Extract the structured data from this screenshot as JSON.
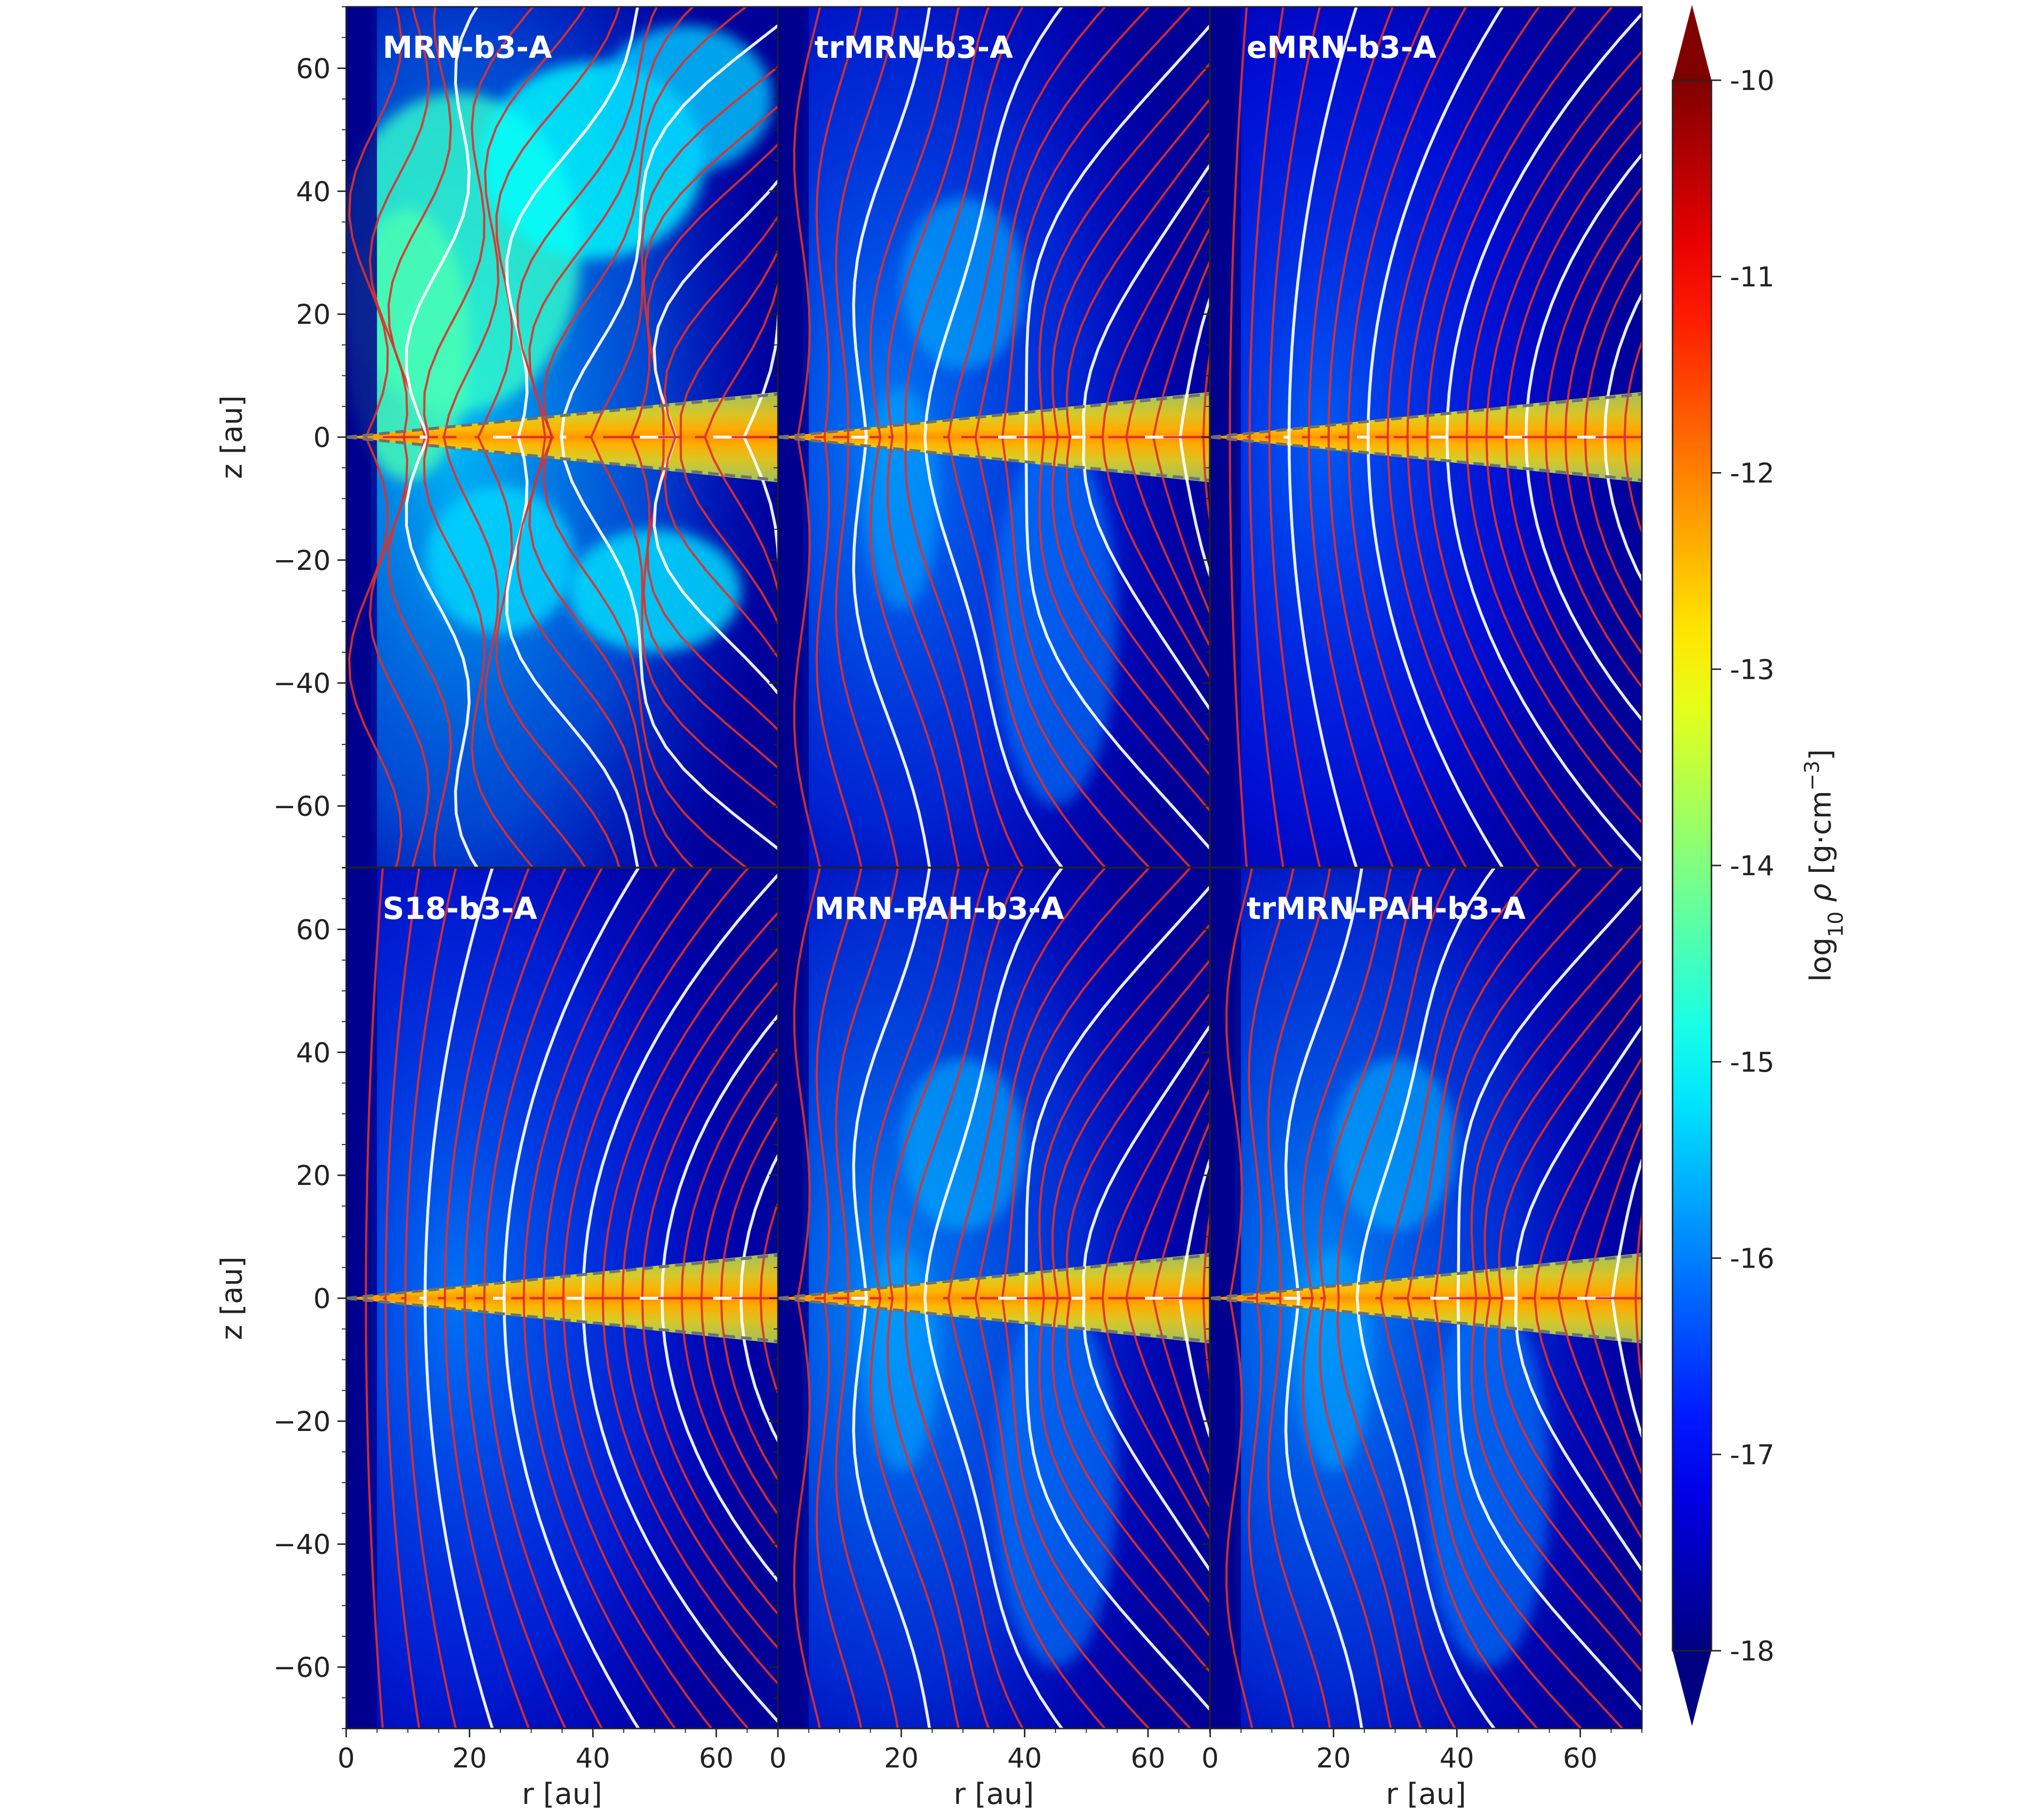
{
  "chart_data": [
    {
      "type": "heatmap",
      "title": "MRN-b3-A",
      "xlabel": "r [au]",
      "ylabel": "z [au]",
      "xlim": [
        0,
        70
      ],
      "ylim": [
        -70,
        70
      ],
      "xticks": [
        0,
        20,
        40,
        60
      ],
      "yticks": [
        -60,
        -40,
        -20,
        0,
        20,
        40,
        60
      ],
      "disk_boundary_slope": 0.1,
      "envelope_level": -16.0,
      "morphology": "turbulent"
    },
    {
      "type": "heatmap",
      "title": "trMRN-b3-A",
      "xlabel": "r [au]",
      "ylabel": "z [au]",
      "xlim": [
        0,
        70
      ],
      "ylim": [
        -70,
        70
      ],
      "xticks": [
        0,
        20,
        40,
        60
      ],
      "yticks": [
        -60,
        -40,
        -20,
        0,
        20,
        40,
        60
      ],
      "disk_boundary_slope": 0.1,
      "envelope_level": -16.5,
      "morphology": "outflow"
    },
    {
      "type": "heatmap",
      "title": "eMRN-b3-A",
      "xlabel": "r [au]",
      "ylabel": "z [au]",
      "xlim": [
        0,
        70
      ],
      "ylim": [
        -70,
        70
      ],
      "xticks": [
        0,
        20,
        40,
        60
      ],
      "yticks": [
        -60,
        -40,
        -20,
        0,
        20,
        40,
        60
      ],
      "disk_boundary_slope": 0.1,
      "envelope_level": -16.8,
      "morphology": "laminar"
    },
    {
      "type": "heatmap",
      "title": "S18-b3-A",
      "xlabel": "r [au]",
      "ylabel": "z [au]",
      "xlim": [
        0,
        70
      ],
      "ylim": [
        -70,
        70
      ],
      "xticks": [
        0,
        20,
        40,
        60
      ],
      "yticks": [
        -60,
        -40,
        -20,
        0,
        20,
        40,
        60
      ],
      "disk_boundary_slope": 0.1,
      "envelope_level": -16.6,
      "morphology": "laminar"
    },
    {
      "type": "heatmap",
      "title": "MRN-PAH-b3-A",
      "xlabel": "r [au]",
      "ylabel": "z [au]",
      "xlim": [
        0,
        70
      ],
      "ylim": [
        -70,
        70
      ],
      "xticks": [
        0,
        20,
        40,
        60
      ],
      "yticks": [
        -60,
        -40,
        -20,
        0,
        20,
        40,
        60
      ],
      "disk_boundary_slope": 0.1,
      "envelope_level": -16.4,
      "morphology": "outflow"
    },
    {
      "type": "heatmap",
      "title": "trMRN-PAH-b3-A",
      "xlabel": "r [au]",
      "ylabel": "z [au]",
      "xlim": [
        0,
        70
      ],
      "ylim": [
        -70,
        70
      ],
      "xticks": [
        0,
        20,
        40,
        60
      ],
      "yticks": [
        -60,
        -40,
        -20,
        0,
        20,
        40,
        60
      ],
      "disk_boundary_slope": 0.1,
      "envelope_level": -16.4,
      "morphology": "outflow"
    }
  ],
  "colorbar": {
    "label_prefix": "log",
    "label_sub": "10",
    "label_rho": "ρ",
    "label_unit": "[g·cm",
    "label_exp": "−3",
    "label_close": "]",
    "range": [
      -18,
      -10
    ],
    "ticks": [
      "-10",
      "-11",
      "-12",
      "-13",
      "-14",
      "-15",
      "-16",
      "-17",
      "-18"
    ],
    "colormap": "jet",
    "extend": "both"
  },
  "contours": {
    "red": "#e0302a",
    "white": "#ffffff",
    "dashed": "#707070"
  }
}
